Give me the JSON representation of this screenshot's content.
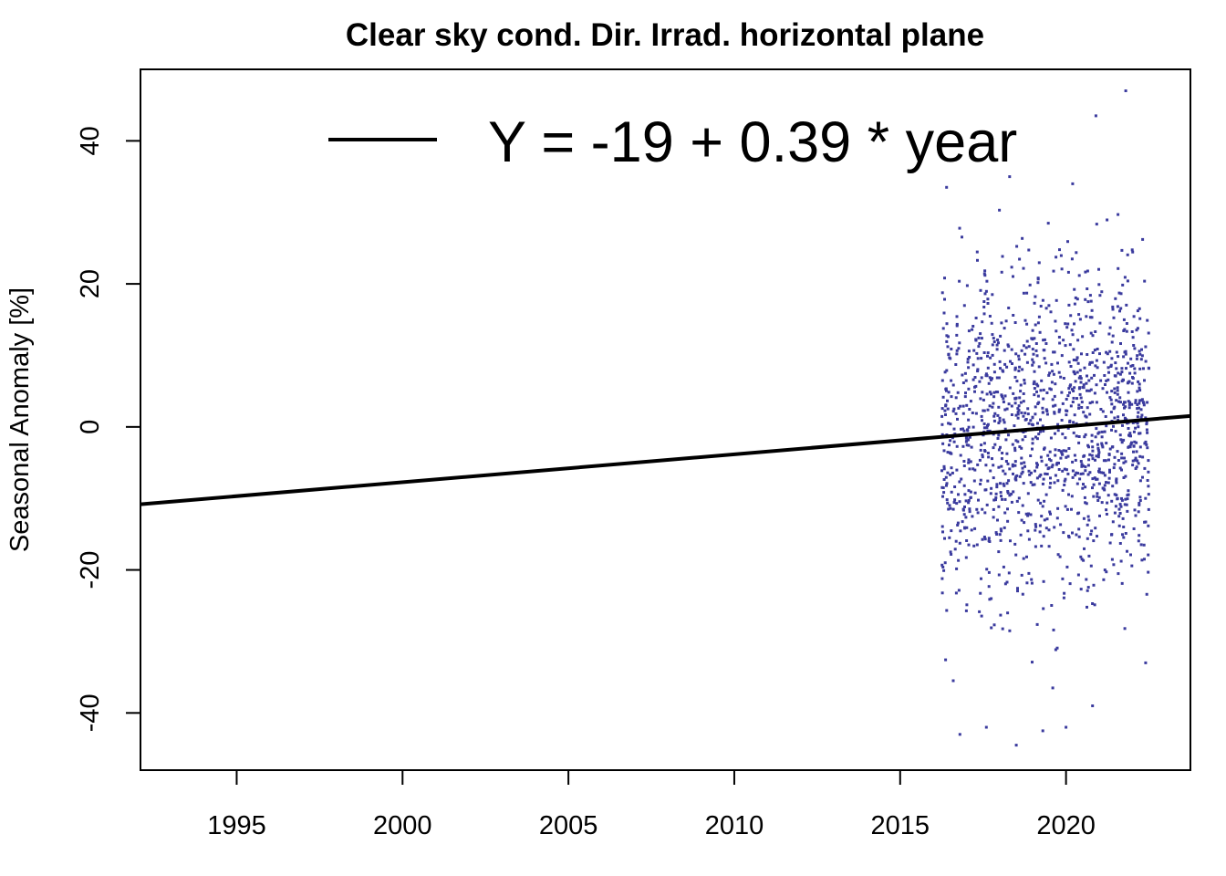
{
  "chart_data": {
    "type": "scatter",
    "title": "Clear sky cond. Dir. Irrad. horizontal plane",
    "xlabel": "",
    "ylabel": "Seasonal Anomaly [%]",
    "xlim": [
      1992.1,
      2023.75
    ],
    "ylim": [
      -48,
      50
    ],
    "x_ticks": [
      "1995",
      "2000",
      "2005",
      "2010",
      "2015",
      "2020"
    ],
    "y_ticks": [
      "-40",
      "-20",
      "0",
      "20",
      "40"
    ],
    "trend": {
      "intercept": -19,
      "slope": 0.39,
      "x_ref": 2019.83,
      "label": "Y = -19 + 0.39 * year"
    },
    "legend": {
      "position": "top",
      "entries": [
        "Y = -19 + 0.39 * year"
      ]
    },
    "grid": false,
    "colors": {
      "points": "#3b3b9e",
      "trend": "#000000"
    },
    "series": [
      {
        "x_range": [
          2016.25,
          2022.5
        ],
        "note_outliers": [
          [
            2021.8,
            47
          ],
          [
            2020.9,
            43.5
          ],
          [
            2016.4,
            33.5
          ],
          [
            2020.2,
            34
          ],
          [
            2018.3,
            35
          ],
          [
            2016.8,
            -43
          ],
          [
            2017.6,
            -42
          ],
          [
            2018.5,
            -44.5
          ],
          [
            2019.3,
            -42.5
          ],
          [
            2020.0,
            -42
          ],
          [
            2016.6,
            -35.5
          ],
          [
            2019.6,
            -36.5
          ],
          [
            2020.8,
            -39
          ],
          [
            2022.4,
            -33
          ]
        ]
      }
    ]
  }
}
